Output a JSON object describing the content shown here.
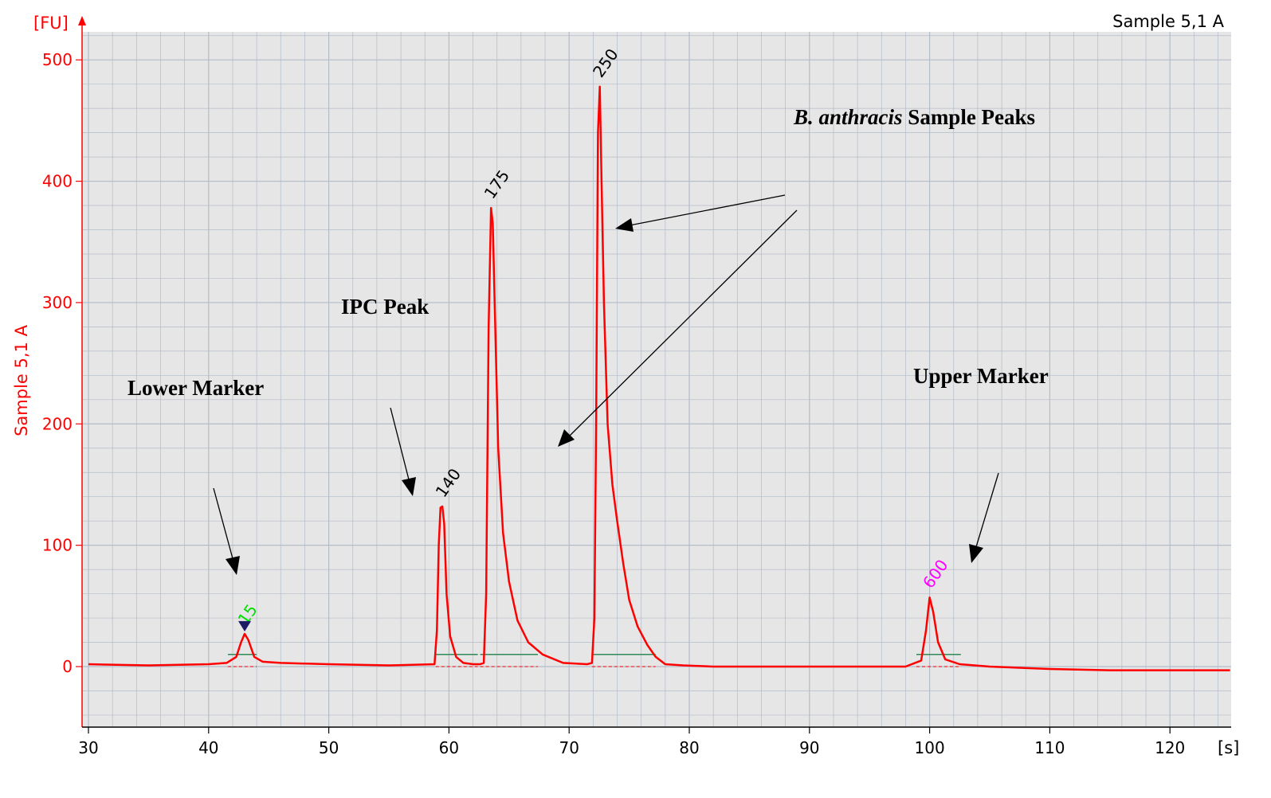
{
  "sample_name": "Sample 5,1 A",
  "y_axis_label": "Sample 5,1 A",
  "y_unit": "[FU]",
  "x_unit": "[s]",
  "colors": {
    "trace": "#ff0000",
    "axis_text": "#ff0000",
    "grid": "#b4bcc8",
    "baseline": "#2e8b57",
    "marker_lower": "#00e000",
    "marker_upper": "#ff00ff",
    "arrow": "#000000",
    "plot_bg": "#e6e6e6"
  },
  "annotations": {
    "lower_marker": "Lower Marker",
    "ipc_peak": "IPC Peak",
    "sample_peaks_italic": "B. anthracis",
    "sample_peaks_rest": " Sample Peaks",
    "upper_marker": "Upper Marker"
  },
  "chart_data": {
    "type": "line",
    "title": "Sample 5,1 A",
    "xlabel": "[s]",
    "ylabel": "Sample 5,1 A",
    "xlim": [
      29.5,
      125
    ],
    "ylim": [
      -50,
      520
    ],
    "x_ticks": [
      30,
      40,
      50,
      60,
      70,
      80,
      90,
      100,
      110,
      120
    ],
    "y_ticks": [
      0,
      100,
      200,
      300,
      400,
      500
    ],
    "grid": true,
    "series": [
      {
        "x": [
          30,
          35,
          40,
          41.5,
          42.3,
          42.7,
          43.0,
          43.3,
          43.8,
          44.5,
          46,
          50,
          55,
          58.8,
          59.0,
          59.15,
          59.3,
          59.45,
          59.6,
          59.8,
          60.1,
          60.6,
          61.2,
          62.0,
          62.6,
          62.9,
          63.1,
          63.3,
          63.5,
          63.65,
          63.85,
          64.1,
          64.5,
          65.0,
          65.7,
          66.6,
          67.8,
          69.5,
          71.5,
          71.9,
          72.1,
          72.25,
          72.4,
          72.55,
          72.7,
          72.9,
          73.2,
          73.6,
          74.0,
          74.5,
          75.0,
          75.7,
          76.5,
          77.2,
          78.0,
          79.5,
          82,
          90,
          98,
          99.3,
          99.7,
          100.0,
          100.3,
          100.7,
          101.3,
          102.5,
          105,
          110,
          115,
          120,
          125
        ],
        "y": [
          2,
          1,
          2,
          3,
          8,
          20,
          27,
          22,
          8,
          4,
          3,
          2,
          1,
          2,
          30,
          100,
          131,
          132,
          118,
          60,
          25,
          8,
          3,
          2,
          2,
          3,
          60,
          280,
          378,
          365,
          280,
          180,
          110,
          70,
          38,
          20,
          10,
          3,
          2,
          3,
          40,
          200,
          440,
          478,
          400,
          300,
          200,
          150,
          120,
          85,
          55,
          33,
          18,
          8,
          2,
          1,
          0,
          0,
          0,
          5,
          30,
          57,
          45,
          20,
          6,
          2,
          0,
          -2,
          -3,
          -3,
          -3
        ]
      }
    ],
    "peaks": [
      {
        "label": "15",
        "x": 43.0,
        "y": 27
      },
      {
        "label": "140",
        "x": 59.45,
        "y": 132
      },
      {
        "label": "175",
        "x": 63.5,
        "y": 378
      },
      {
        "label": "250",
        "x": 72.55,
        "y": 478
      },
      {
        "label": "600",
        "x": 100.0,
        "y": 57
      }
    ]
  }
}
